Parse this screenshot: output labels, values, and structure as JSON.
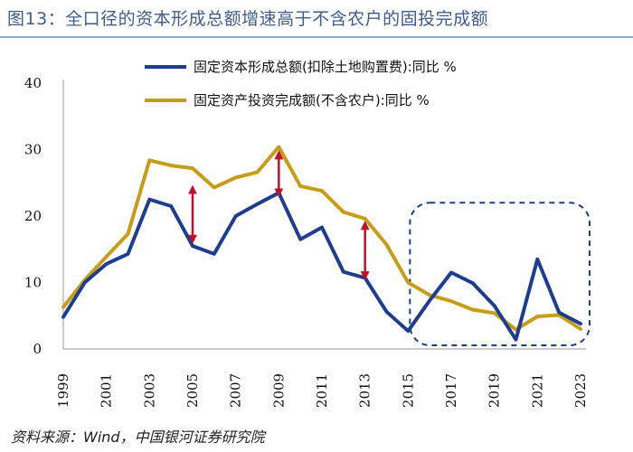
{
  "title": "图13：全口径的资本形成总额增速高于不含农户的固投完成额",
  "source": "资料来源：Wind，中国银河证券研究院",
  "chart_data": {
    "type": "line",
    "x": [
      "1999",
      "2000",
      "2001",
      "2002",
      "2003",
      "2004",
      "2005",
      "2006",
      "2007",
      "2008",
      "2009",
      "2010",
      "2011",
      "2012",
      "2013",
      "2014",
      "2015",
      "2016",
      "2017",
      "2018",
      "2019",
      "2020",
      "2021",
      "2022",
      "2023"
    ],
    "x_tick_labels": [
      "1999",
      "2001",
      "2003",
      "2005",
      "2007",
      "2009",
      "2011",
      "2013",
      "2015",
      "2017",
      "2019",
      "2021",
      "2023"
    ],
    "ylim": [
      0,
      40
    ],
    "y_ticks": [
      0,
      10,
      20,
      30,
      40
    ],
    "legend_position": "top-center",
    "series": [
      {
        "name": "固定资本形成总额(扣除土地购置费):同比 %",
        "color": "#1f3d8f",
        "values": [
          4.8,
          10.0,
          12.8,
          14.3,
          22.5,
          21.5,
          15.5,
          14.3,
          20.0,
          21.8,
          23.5,
          16.5,
          18.3,
          11.6,
          10.7,
          5.6,
          2.7,
          7.3,
          11.5,
          9.9,
          6.5,
          1.4,
          13.5,
          5.5,
          3.8
        ]
      },
      {
        "name": "固定资产投资完成额(不含农户):同比 %",
        "color": "#c59d16",
        "values": [
          6.3,
          10.4,
          13.9,
          17.3,
          28.4,
          27.6,
          27.2,
          24.3,
          25.8,
          26.6,
          30.4,
          24.5,
          23.8,
          20.6,
          19.6,
          15.7,
          10.0,
          8.1,
          7.2,
          5.9,
          5.4,
          2.9,
          4.9,
          5.1,
          3.0
        ]
      }
    ],
    "annotations": {
      "double_arrows": [
        {
          "x": "2005",
          "y_from": 16.5,
          "y_to": 24.0
        },
        {
          "x": "2009",
          "y_from": 23.5,
          "y_to": 29.2
        },
        {
          "x": "2013",
          "y_from": 11.0,
          "y_to": 18.6
        }
      ],
      "highlight_box": {
        "x_from": "2015",
        "x_to": "2023",
        "y_from": 0,
        "y_to": 22
      }
    }
  }
}
